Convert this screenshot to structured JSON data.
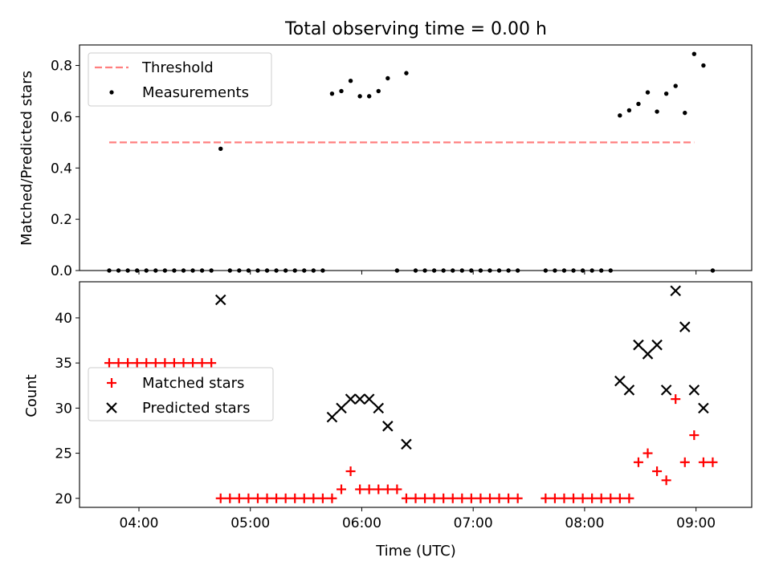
{
  "chart_data": [
    {
      "type": "scatter",
      "title": "Total observing time = 0.00 h",
      "xlabel": "",
      "ylabel": "Matched/Predicted stars",
      "xlim": [
        "03:28",
        "09:30"
      ],
      "ylim": [
        0,
        0.88
      ],
      "xticks": [
        "04:00",
        "05:00",
        "06:00",
        "07:00",
        "08:00",
        "09:00"
      ],
      "yticks": [
        "0.0",
        "0.2",
        "0.4",
        "0.6",
        "0.8"
      ],
      "legend": {
        "position": "upper left"
      },
      "grid": false,
      "series": [
        {
          "name": "Threshold",
          "style": "dashed-line",
          "color": "#ff7f7f",
          "points": [
            [
              "03:44",
              0.5
            ],
            [
              "08:59",
              0.5
            ]
          ]
        },
        {
          "name": "Measurements",
          "style": "dot",
          "color": "#000000",
          "points": [
            [
              "03:44",
              0
            ],
            [
              "03:49",
              0
            ],
            [
              "03:54",
              0
            ],
            [
              "03:59",
              0
            ],
            [
              "04:04",
              0
            ],
            [
              "04:09",
              0
            ],
            [
              "04:14",
              0
            ],
            [
              "04:19",
              0
            ],
            [
              "04:24",
              0
            ],
            [
              "04:29",
              0
            ],
            [
              "04:34",
              0
            ],
            [
              "04:39",
              0
            ],
            [
              "04:44",
              0.475
            ],
            [
              "04:49",
              0
            ],
            [
              "04:54",
              0
            ],
            [
              "04:59",
              0
            ],
            [
              "05:04",
              0
            ],
            [
              "05:09",
              0
            ],
            [
              "05:14",
              0
            ],
            [
              "05:19",
              0
            ],
            [
              "05:24",
              0
            ],
            [
              "05:29",
              0
            ],
            [
              "05:34",
              0
            ],
            [
              "05:39",
              0
            ],
            [
              "05:44",
              0.69
            ],
            [
              "05:49",
              0.7
            ],
            [
              "05:54",
              0.74
            ],
            [
              "05:59",
              0.68
            ],
            [
              "06:04",
              0.68
            ],
            [
              "06:09",
              0.7
            ],
            [
              "06:14",
              0.75
            ],
            [
              "06:19",
              0
            ],
            [
              "06:24",
              0.77
            ],
            [
              "06:29",
              0
            ],
            [
              "06:34",
              0
            ],
            [
              "06:39",
              0
            ],
            [
              "06:44",
              0
            ],
            [
              "06:49",
              0
            ],
            [
              "06:54",
              0
            ],
            [
              "06:59",
              0
            ],
            [
              "07:04",
              0
            ],
            [
              "07:09",
              0
            ],
            [
              "07:14",
              0
            ],
            [
              "07:19",
              0
            ],
            [
              "07:24",
              0
            ],
            [
              "07:39",
              0
            ],
            [
              "07:44",
              0
            ],
            [
              "07:49",
              0
            ],
            [
              "07:54",
              0
            ],
            [
              "07:59",
              0
            ],
            [
              "08:04",
              0
            ],
            [
              "08:09",
              0
            ],
            [
              "08:14",
              0
            ],
            [
              "08:19",
              0.605
            ],
            [
              "08:24",
              0.625
            ],
            [
              "08:29",
              0.65
            ],
            [
              "08:34",
              0.695
            ],
            [
              "08:39",
              0.62
            ],
            [
              "08:44",
              0.69
            ],
            [
              "08:49",
              0.72
            ],
            [
              "08:54",
              0.615
            ],
            [
              "08:59",
              0.845
            ],
            [
              "09:04",
              0.8
            ],
            [
              "09:09",
              0
            ]
          ]
        }
      ]
    },
    {
      "type": "scatter",
      "title": "",
      "xlabel": "Time (UTC)",
      "ylabel": "Count",
      "xlim": [
        "03:28",
        "09:30"
      ],
      "ylim": [
        19,
        44
      ],
      "xticks": [
        "04:00",
        "05:00",
        "06:00",
        "07:00",
        "08:00",
        "09:00"
      ],
      "yticks": [
        "20",
        "25",
        "30",
        "35",
        "40"
      ],
      "legend": {
        "position": "center left"
      },
      "grid": false,
      "series": [
        {
          "name": "Matched stars",
          "style": "plus",
          "color": "#ff0000",
          "points": [
            [
              "03:44",
              35
            ],
            [
              "03:49",
              35
            ],
            [
              "03:54",
              35
            ],
            [
              "03:59",
              35
            ],
            [
              "04:04",
              35
            ],
            [
              "04:09",
              35
            ],
            [
              "04:14",
              35
            ],
            [
              "04:19",
              35
            ],
            [
              "04:24",
              35
            ],
            [
              "04:29",
              35
            ],
            [
              "04:34",
              35
            ],
            [
              "04:39",
              35
            ],
            [
              "04:44",
              20
            ],
            [
              "04:49",
              20
            ],
            [
              "04:54",
              20
            ],
            [
              "04:59",
              20
            ],
            [
              "05:04",
              20
            ],
            [
              "05:09",
              20
            ],
            [
              "05:14",
              20
            ],
            [
              "05:19",
              20
            ],
            [
              "05:24",
              20
            ],
            [
              "05:29",
              20
            ],
            [
              "05:34",
              20
            ],
            [
              "05:39",
              20
            ],
            [
              "05:44",
              20
            ],
            [
              "05:49",
              21
            ],
            [
              "05:54",
              23
            ],
            [
              "05:59",
              21
            ],
            [
              "06:04",
              21
            ],
            [
              "06:09",
              21
            ],
            [
              "06:14",
              21
            ],
            [
              "06:19",
              21
            ],
            [
              "06:24",
              20
            ],
            [
              "06:29",
              20
            ],
            [
              "06:34",
              20
            ],
            [
              "06:39",
              20
            ],
            [
              "06:44",
              20
            ],
            [
              "06:49",
              20
            ],
            [
              "06:54",
              20
            ],
            [
              "06:59",
              20
            ],
            [
              "07:04",
              20
            ],
            [
              "07:09",
              20
            ],
            [
              "07:14",
              20
            ],
            [
              "07:19",
              20
            ],
            [
              "07:24",
              20
            ],
            [
              "07:39",
              20
            ],
            [
              "07:44",
              20
            ],
            [
              "07:49",
              20
            ],
            [
              "07:54",
              20
            ],
            [
              "07:59",
              20
            ],
            [
              "08:04",
              20
            ],
            [
              "08:09",
              20
            ],
            [
              "08:14",
              20
            ],
            [
              "08:19",
              20
            ],
            [
              "08:24",
              20
            ],
            [
              "08:29",
              24
            ],
            [
              "08:34",
              25
            ],
            [
              "08:39",
              23
            ],
            [
              "08:44",
              22
            ],
            [
              "08:49",
              31
            ],
            [
              "08:54",
              24
            ],
            [
              "08:59",
              27
            ],
            [
              "09:04",
              24
            ],
            [
              "09:09",
              24
            ]
          ]
        },
        {
          "name": "Predicted stars",
          "style": "cross",
          "color": "#000000",
          "points": [
            [
              "04:44",
              42
            ],
            [
              "05:44",
              29
            ],
            [
              "05:49",
              30
            ],
            [
              "05:54",
              31
            ],
            [
              "05:59",
              31
            ],
            [
              "06:04",
              31
            ],
            [
              "06:09",
              30
            ],
            [
              "06:14",
              28
            ],
            [
              "06:24",
              26
            ],
            [
              "08:19",
              33
            ],
            [
              "08:24",
              32
            ],
            [
              "08:29",
              37
            ],
            [
              "08:34",
              36
            ],
            [
              "08:39",
              37
            ],
            [
              "08:44",
              32
            ],
            [
              "08:49",
              43
            ],
            [
              "08:54",
              39
            ],
            [
              "08:59",
              32
            ],
            [
              "09:04",
              30
            ]
          ]
        }
      ]
    }
  ]
}
